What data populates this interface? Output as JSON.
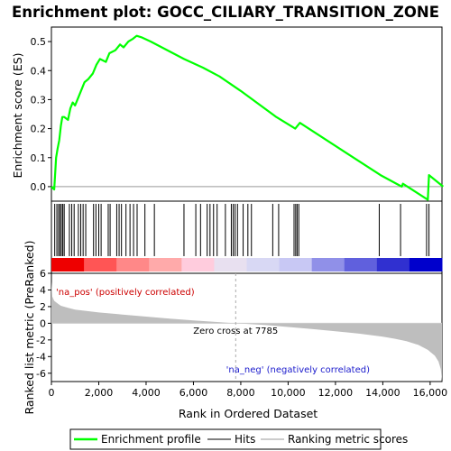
{
  "chart_data": {
    "type": "line",
    "title": "Enrichment plot: GOCC_CILIARY_TRANSITION_ZONE",
    "es_panel": {
      "ylabel": "Enrichment score (ES)",
      "ylim": [
        -0.05,
        0.55
      ],
      "yticks": [
        "0.0",
        "0.1",
        "0.2",
        "0.3",
        "0.4",
        "0.5"
      ],
      "ytick_values": [
        0.0,
        0.1,
        0.2,
        0.3,
        0.4,
        0.5
      ],
      "xlim": [
        0,
        16500
      ],
      "grid": false
    },
    "enrichment_profile": {
      "name": "Enrichment profile",
      "color": "#00ff00",
      "x": [
        0,
        120,
        200,
        260,
        330,
        400,
        460,
        540,
        700,
        800,
        900,
        1000,
        1150,
        1300,
        1400,
        1550,
        1750,
        1900,
        2050,
        2300,
        2450,
        2700,
        2900,
        3050,
        3250,
        3450,
        3600,
        3800,
        4200,
        5600,
        6400,
        7100,
        8000,
        9500,
        10300,
        10500,
        13900,
        14800,
        14850,
        15900,
        15950,
        16550
      ],
      "y": [
        0.0,
        -0.01,
        0.1,
        0.13,
        0.16,
        0.21,
        0.24,
        0.24,
        0.23,
        0.27,
        0.29,
        0.28,
        0.31,
        0.34,
        0.36,
        0.37,
        0.39,
        0.42,
        0.44,
        0.43,
        0.46,
        0.47,
        0.49,
        0.48,
        0.5,
        0.51,
        0.52,
        0.515,
        0.5,
        0.44,
        0.41,
        0.38,
        0.33,
        0.24,
        0.2,
        0.22,
        0.04,
        0.0,
        0.01,
        -0.045,
        0.04,
        0.0
      ]
    },
    "hits": {
      "name": "Hits",
      "color": "#000000",
      "x": [
        140,
        230,
        300,
        360,
        420,
        480,
        540,
        760,
        860,
        960,
        1140,
        1240,
        1340,
        1450,
        1780,
        1880,
        2000,
        2100,
        2400,
        2480,
        2760,
        2860,
        2960,
        3150,
        3320,
        3470,
        3620,
        3950,
        4350,
        5600,
        6100,
        6300,
        6580,
        6700,
        6850,
        7000,
        7350,
        7600,
        7680,
        7760,
        7860,
        8100,
        8300,
        8450,
        9350,
        9600,
        10250,
        10320,
        10380,
        10450,
        13850,
        14750,
        15850,
        15950
      ]
    },
    "rank_bar": {
      "colors": [
        "#ee0000",
        "#ff5555",
        "#ff8888",
        "#ffaaaa",
        "#ffccdd",
        "#e8e0f0",
        "#d8d8f4",
        "#c8c8f4",
        "#9090e8",
        "#6060dd",
        "#3030d0",
        "#0000cc"
      ]
    },
    "metric_panel": {
      "ylabel": "Ranked list metric (PreRanked)",
      "ylim": [
        -7,
        6
      ],
      "yticks": [
        "-6",
        "-4",
        "-2",
        "0",
        "2",
        "4",
        "6"
      ],
      "ytick_values": [
        -6,
        -4,
        -2,
        0,
        2,
        4,
        6
      ],
      "x": [
        0,
        40,
        120,
        250,
        400,
        700,
        1000,
        2000,
        3000,
        4000,
        5000,
        6000,
        7000,
        7785,
        9000,
        10000,
        11000,
        12000,
        13000,
        14000,
        14500,
        15000,
        15500,
        15900,
        16200,
        16350,
        16450,
        16500
      ],
      "y": [
        5.0,
        3.2,
        2.7,
        2.4,
        2.1,
        1.85,
        1.65,
        1.3,
        1.05,
        0.8,
        0.55,
        0.35,
        0.15,
        0.0,
        -0.2,
        -0.45,
        -0.7,
        -0.95,
        -1.25,
        -1.6,
        -1.85,
        -2.15,
        -2.6,
        -3.2,
        -3.9,
        -4.6,
        -5.5,
        -7.0
      ],
      "fill_color": "#bebebe",
      "pos_label": "'na_pos' (positively correlated)",
      "neg_label": "'na_neg' (negatively correlated)",
      "zero_cross_label": "Zero cross at 7785",
      "zero_cross": 7785
    },
    "xaxis": {
      "xlabel": "Rank in Ordered Dataset",
      "xticks": [
        "0",
        "2,000",
        "4,000",
        "6,000",
        "8,000",
        "10,000",
        "12,000",
        "14,000",
        "16,000"
      ],
      "xtick_values": [
        0,
        2000,
        4000,
        6000,
        8000,
        10000,
        12000,
        14000,
        16000
      ]
    },
    "legend": {
      "placement": "bottom",
      "entries": [
        "Enrichment profile",
        "Hits",
        "Ranking metric scores"
      ],
      "colors": [
        "#00ff00",
        "#808080",
        "#cccccc"
      ]
    }
  }
}
